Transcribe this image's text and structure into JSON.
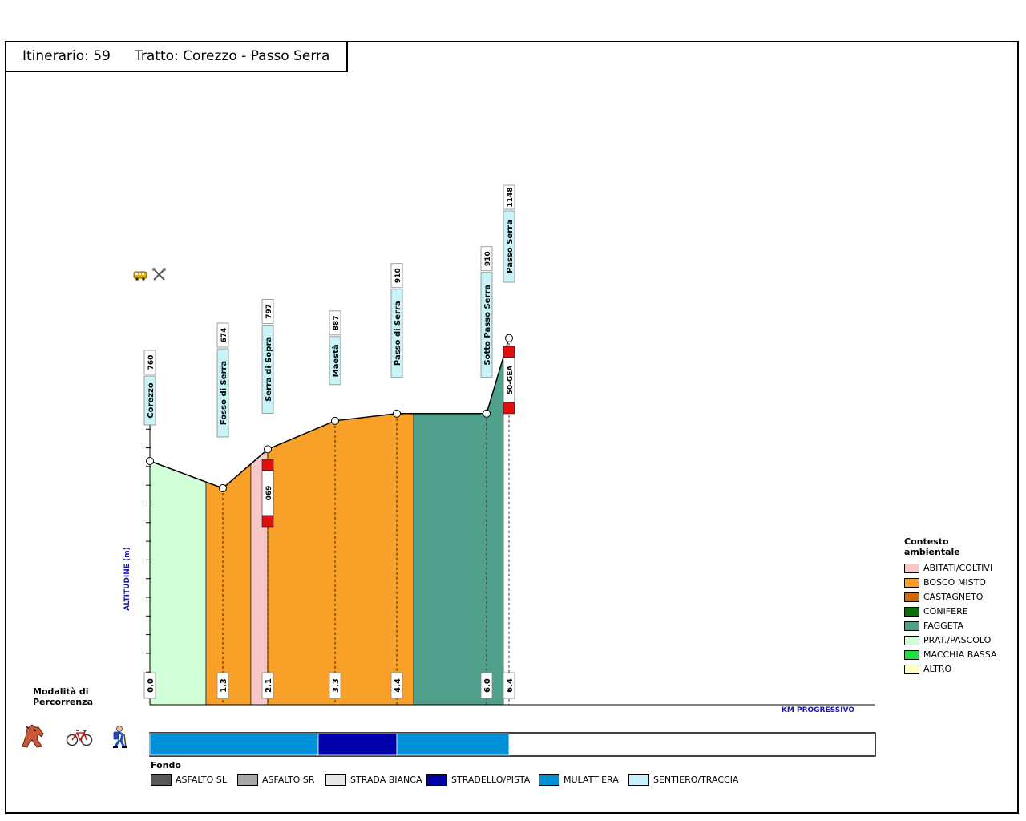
{
  "header": {
    "itinerary_text": "Itinerario: 59",
    "segment_text": "Tratto: Corezzo - Passo Serra"
  },
  "chart_data": {
    "type": "area",
    "ylabel": "ALTITUDINE (m)",
    "xlabel": "KM PROGRESSIVO",
    "waypoints": [
      {
        "km": 0.0,
        "alt": 760,
        "name": "Corezzo",
        "km_label": "0.0",
        "alt_label": "760",
        "icons": [
          "bus-icon",
          "tools-icon"
        ]
      },
      {
        "km": 1.3,
        "alt": 674,
        "name": "Fosso di Serra",
        "km_label": "1.3",
        "alt_label": "674"
      },
      {
        "km": 2.1,
        "alt": 797,
        "name": "Serra di Sopra",
        "km_label": "2.1",
        "alt_label": "797"
      },
      {
        "km": 3.3,
        "alt": 887,
        "name": "Maestà",
        "km_label": "3.3",
        "alt_label": "887"
      },
      {
        "km": 4.4,
        "alt": 910,
        "name": "Passo di Serra",
        "km_label": "4.4",
        "alt_label": "910"
      },
      {
        "km": 6.0,
        "alt": 910,
        "name": "Sotto Passo Serra",
        "km_label": "6.0",
        "alt_label": "910"
      },
      {
        "km": 6.4,
        "alt": 1148,
        "name": "Passo Serra",
        "km_label": "6.4",
        "alt_label": "1148"
      }
    ],
    "context_segments": [
      {
        "from": 0.0,
        "to": 1.0,
        "type": "PRAT./PASCOLO"
      },
      {
        "from": 1.0,
        "to": 1.8,
        "type": "BOSCO MISTO"
      },
      {
        "from": 1.8,
        "to": 2.1,
        "type": "ABITATI/COLTIVI"
      },
      {
        "from": 2.1,
        "to": 4.7,
        "type": "BOSCO MISTO"
      },
      {
        "from": 4.7,
        "to": 6.3,
        "type": "FAGGETA"
      }
    ],
    "trail_markers": [
      {
        "km": 2.1,
        "label": "069"
      },
      {
        "km": 6.4,
        "label": "50-GEA"
      }
    ],
    "fondo_segments": [
      {
        "from": 0.0,
        "to": 3.0,
        "type": "MULATTIERA"
      },
      {
        "from": 3.0,
        "to": 4.4,
        "type": "STRADELLO/PISTA"
      },
      {
        "from": 4.4,
        "to": 6.4,
        "type": "MULATTIERA"
      }
    ]
  },
  "context_legend": {
    "title_line1": "Contesto",
    "title_line2": "ambientale",
    "items": [
      {
        "label": "ABITATI/COLTIVI",
        "color": "#f8c8c8"
      },
      {
        "label": "BOSCO MISTO",
        "color": "#f8a028"
      },
      {
        "label": "CASTAGNETO",
        "color": "#d06808"
      },
      {
        "label": "CONIFERE",
        "color": "#087008"
      },
      {
        "label": "FAGGETA",
        "color": "#50a08c"
      },
      {
        "label": "PRAT./PASCOLO",
        "color": "#d0ffd8"
      },
      {
        "label": "MACCHIA BASSA",
        "color": "#20e040"
      },
      {
        "label": "ALTRO",
        "color": "#ffffc0"
      }
    ]
  },
  "fondo_legend": {
    "title": "Fondo",
    "items": [
      {
        "label": "ASFALTO SL",
        "color": "#585858"
      },
      {
        "label": "ASFALTO SR",
        "color": "#a8a8a8"
      },
      {
        "label": "STRADA BIANCA",
        "color": "#e8e8e8"
      },
      {
        "label": "STRADELLO/PISTA",
        "color": "#0000a8"
      },
      {
        "label": "MULATTIERA",
        "color": "#0090d8"
      },
      {
        "label": "SENTIERO/TRACCIA",
        "color": "#c8f0ff"
      }
    ]
  },
  "modalita": {
    "title_line1": "Modalità di",
    "title_line2": "Percorrenza",
    "icons": [
      "horse-icon",
      "bicycle-icon",
      "hiker-icon"
    ]
  }
}
